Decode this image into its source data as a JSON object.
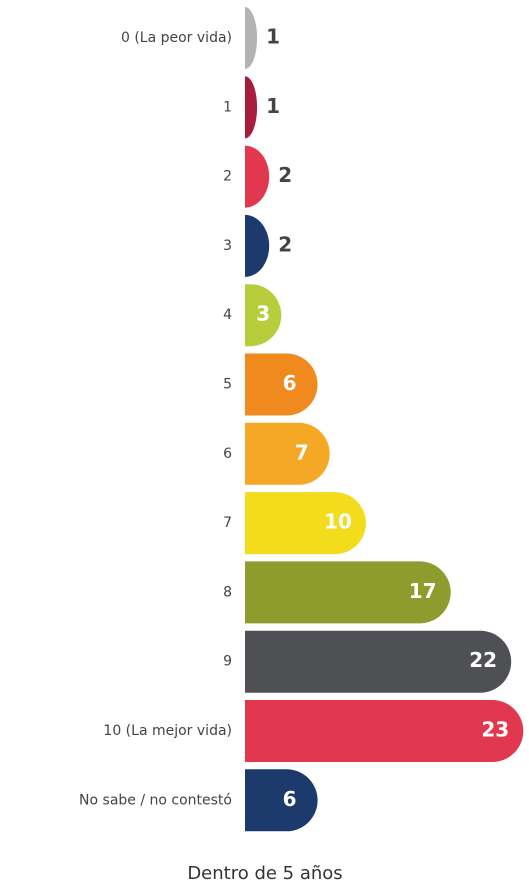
{
  "chart_data": {
    "type": "bar",
    "orientation": "horizontal",
    "title": "Dentro de 5 años",
    "categories": [
      "0 (La peor vida)",
      "1",
      "2",
      "3",
      "4",
      "5",
      "6",
      "7",
      "8",
      "9",
      "10 (La mejor vida)",
      "No sabe / no contestó"
    ],
    "values": [
      1,
      1,
      2,
      2,
      3,
      6,
      7,
      10,
      17,
      22,
      23,
      6
    ],
    "colors": [
      "#b3b3b3",
      "#a81d3e",
      "#e2384f",
      "#1c3a6c",
      "#b8cd3c",
      "#f08a1e",
      "#f5a826",
      "#f2dc1b",
      "#8e9b2d",
      "#4e5054",
      "#e2384f",
      "#1c3a6c"
    ]
  }
}
